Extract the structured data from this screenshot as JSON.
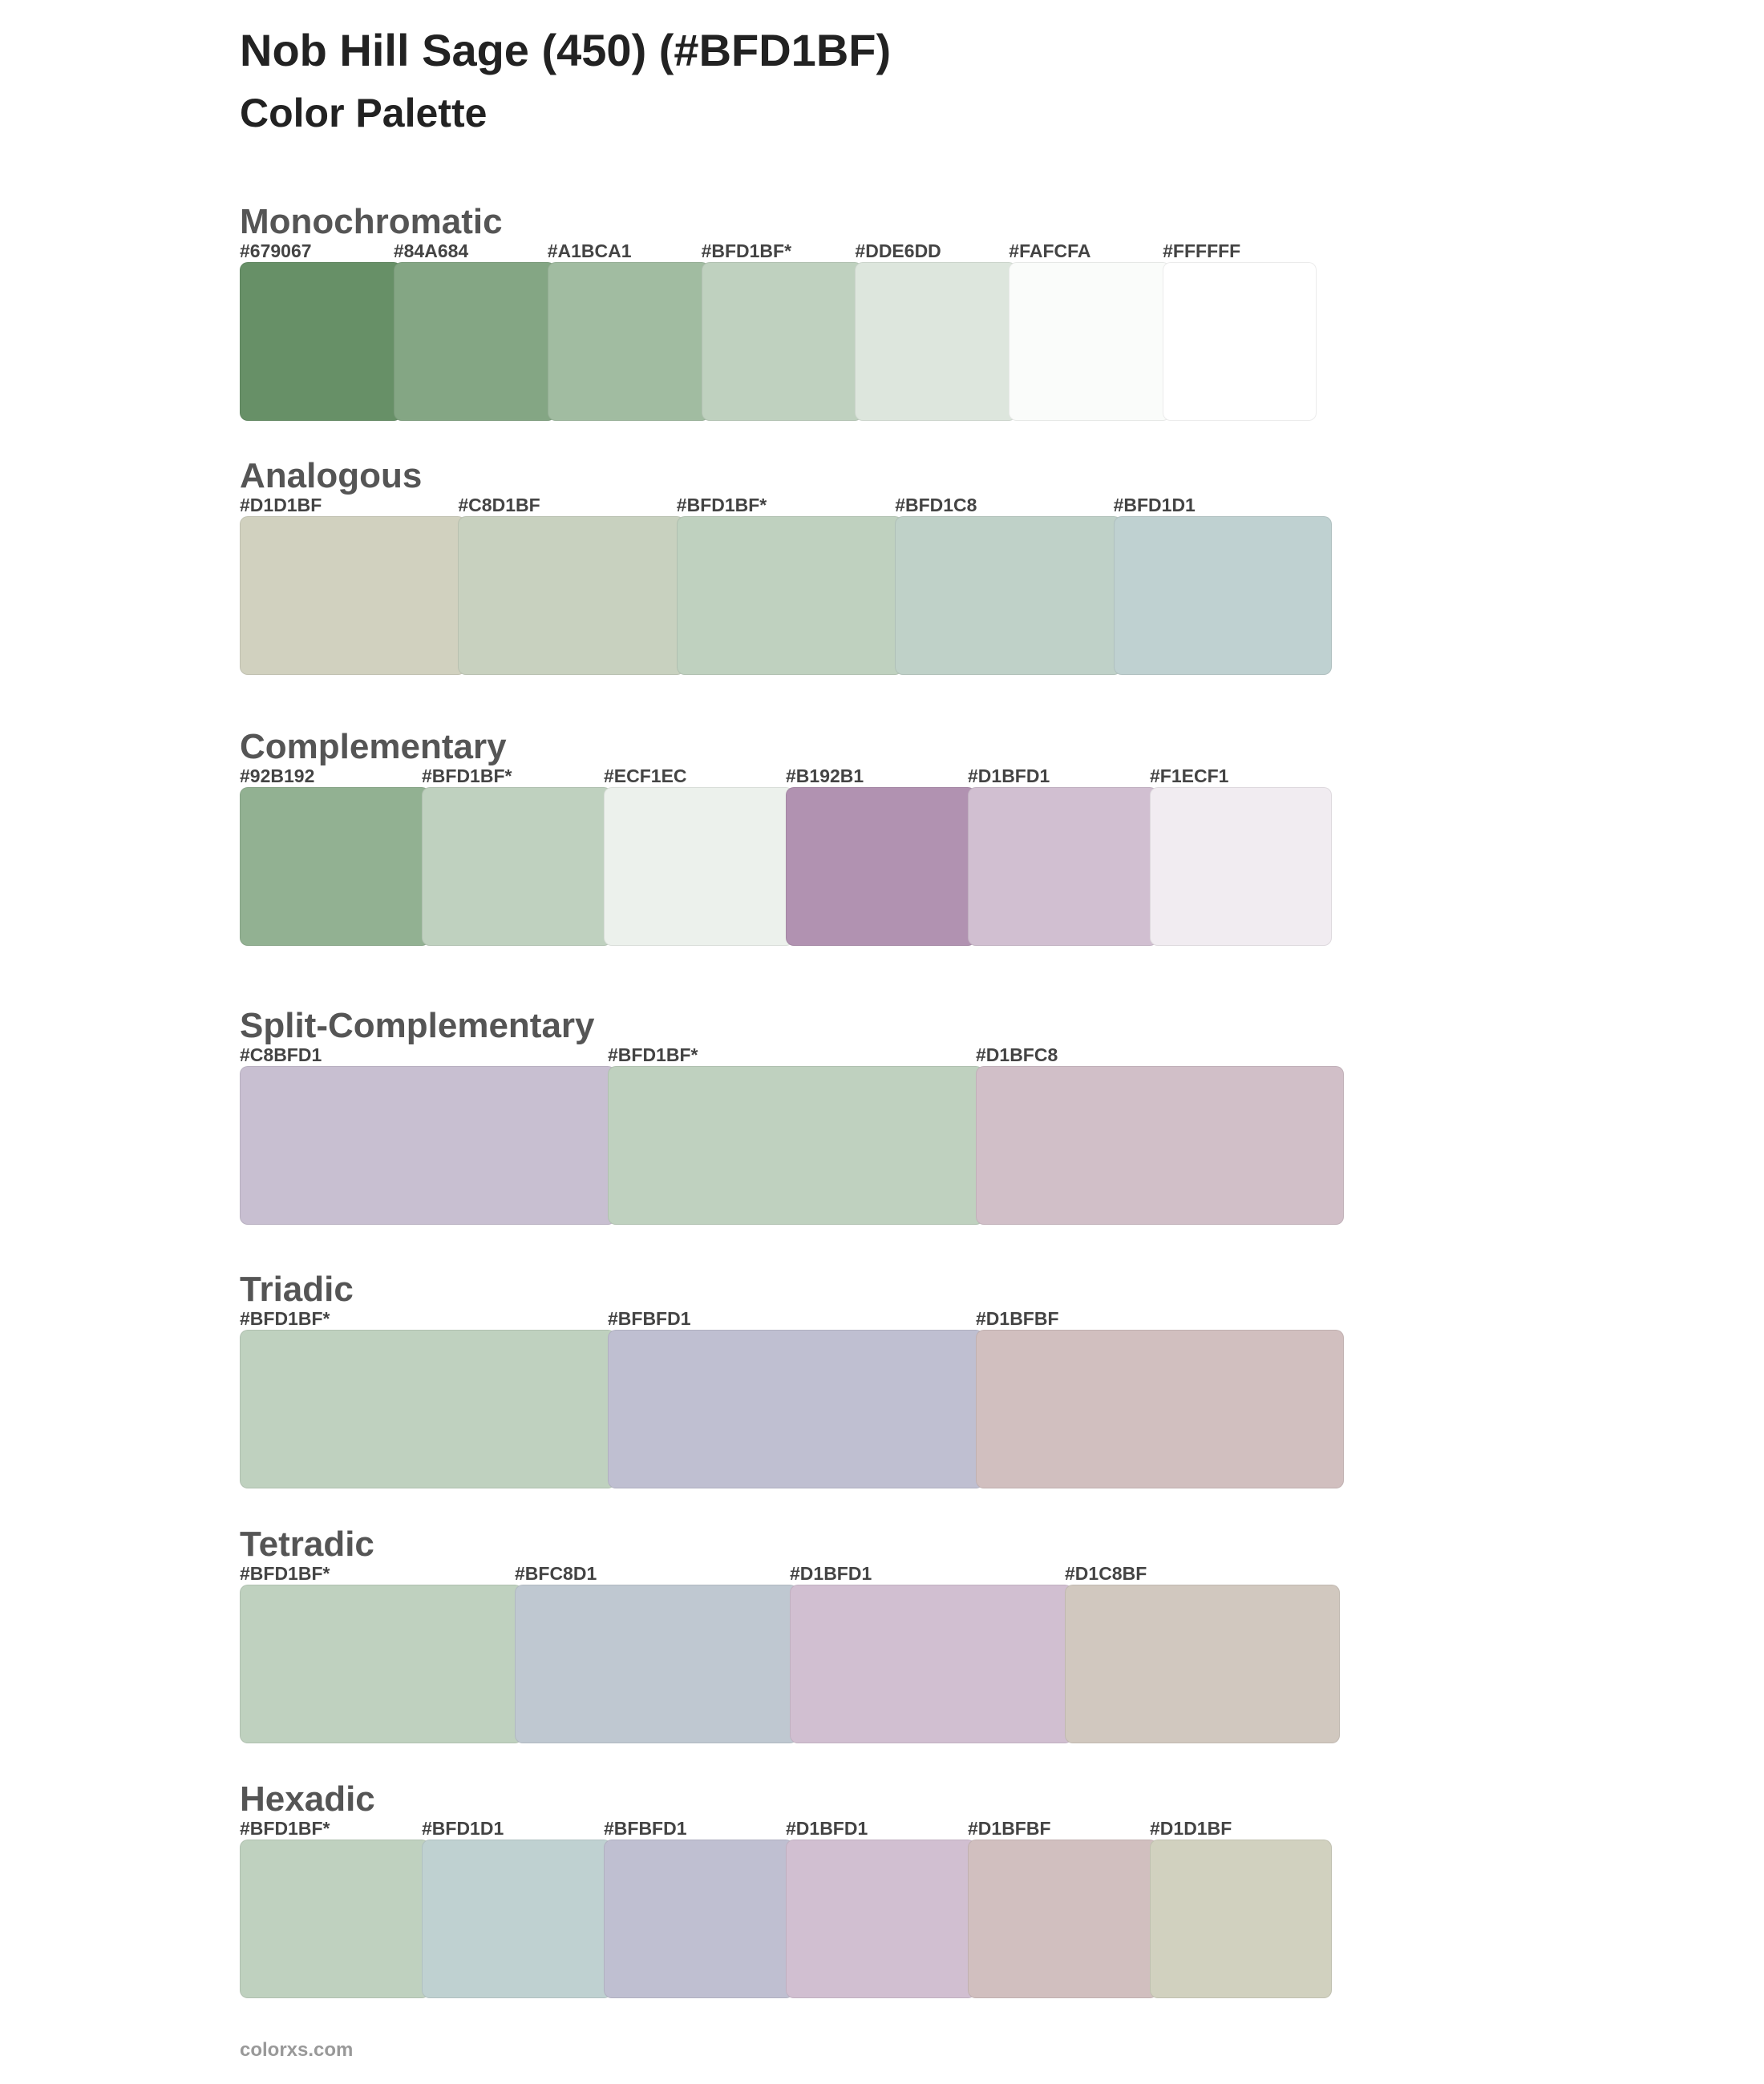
{
  "header": {
    "title": "Nob Hill Sage (450) (#BFD1BF)",
    "subtitle": "Color Palette"
  },
  "sections": [
    {
      "name": "Monochromatic",
      "swatches": [
        {
          "label": "#679067",
          "color": "#679067"
        },
        {
          "label": "#84A684",
          "color": "#84A684"
        },
        {
          "label": "#A1BCA1",
          "color": "#A1BCA1"
        },
        {
          "label": "#BFD1BF*",
          "color": "#BFD1BF"
        },
        {
          "label": "#DDE6DD",
          "color": "#DDE6DD"
        },
        {
          "label": "#FAFCFA",
          "color": "#FAFCFA"
        },
        {
          "label": "#FFFFFF",
          "color": "#FFFFFF"
        }
      ]
    },
    {
      "name": "Analogous",
      "swatches": [
        {
          "label": "#D1D1BF",
          "color": "#D1D1BF"
        },
        {
          "label": "#C8D1BF",
          "color": "#C8D1BF"
        },
        {
          "label": "#BFD1BF*",
          "color": "#BFD1BF"
        },
        {
          "label": "#BFD1C8",
          "color": "#BFD1C8"
        },
        {
          "label": "#BFD1D1",
          "color": "#BFD1D1"
        }
      ]
    },
    {
      "name": "Complementary",
      "swatches": [
        {
          "label": "#92B192",
          "color": "#92B192"
        },
        {
          "label": "#BFD1BF*",
          "color": "#BFD1BF"
        },
        {
          "label": "#ECF1EC",
          "color": "#ECF1EC"
        },
        {
          "label": "#B192B1",
          "color": "#B192B1"
        },
        {
          "label": "#D1BFD1",
          "color": "#D1BFD1"
        },
        {
          "label": "#F1ECF1",
          "color": "#F1ECF1"
        }
      ]
    },
    {
      "name": "Split-Complementary",
      "swatches": [
        {
          "label": "#C8BFD1",
          "color": "#C8BFD1"
        },
        {
          "label": "#BFD1BF*",
          "color": "#BFD1BF"
        },
        {
          "label": "#D1BFC8",
          "color": "#D1BFC8"
        }
      ]
    },
    {
      "name": "Triadic",
      "swatches": [
        {
          "label": "#BFD1BF*",
          "color": "#BFD1BF"
        },
        {
          "label": "#BFBFD1",
          "color": "#BFBFD1"
        },
        {
          "label": "#D1BFBF",
          "color": "#D1BFBF"
        }
      ]
    },
    {
      "name": "Tetradic",
      "swatches": [
        {
          "label": "#BFD1BF*",
          "color": "#BFD1BF"
        },
        {
          "label": "#BFC8D1",
          "color": "#BFC8D1"
        },
        {
          "label": "#D1BFD1",
          "color": "#D1BFD1"
        },
        {
          "label": "#D1C8BF",
          "color": "#D1C8BF"
        }
      ]
    },
    {
      "name": "Hexadic",
      "swatches": [
        {
          "label": "#BFD1BF*",
          "color": "#BFD1BF"
        },
        {
          "label": "#BFD1D1",
          "color": "#BFD1D1"
        },
        {
          "label": "#BFBFD1",
          "color": "#BFBFD1"
        },
        {
          "label": "#D1BFD1",
          "color": "#D1BFD1"
        },
        {
          "label": "#D1BFBF",
          "color": "#D1BFBF"
        },
        {
          "label": "#D1D1BF",
          "color": "#D1D1BF"
        }
      ]
    }
  ],
  "footer": "colorxs.com"
}
